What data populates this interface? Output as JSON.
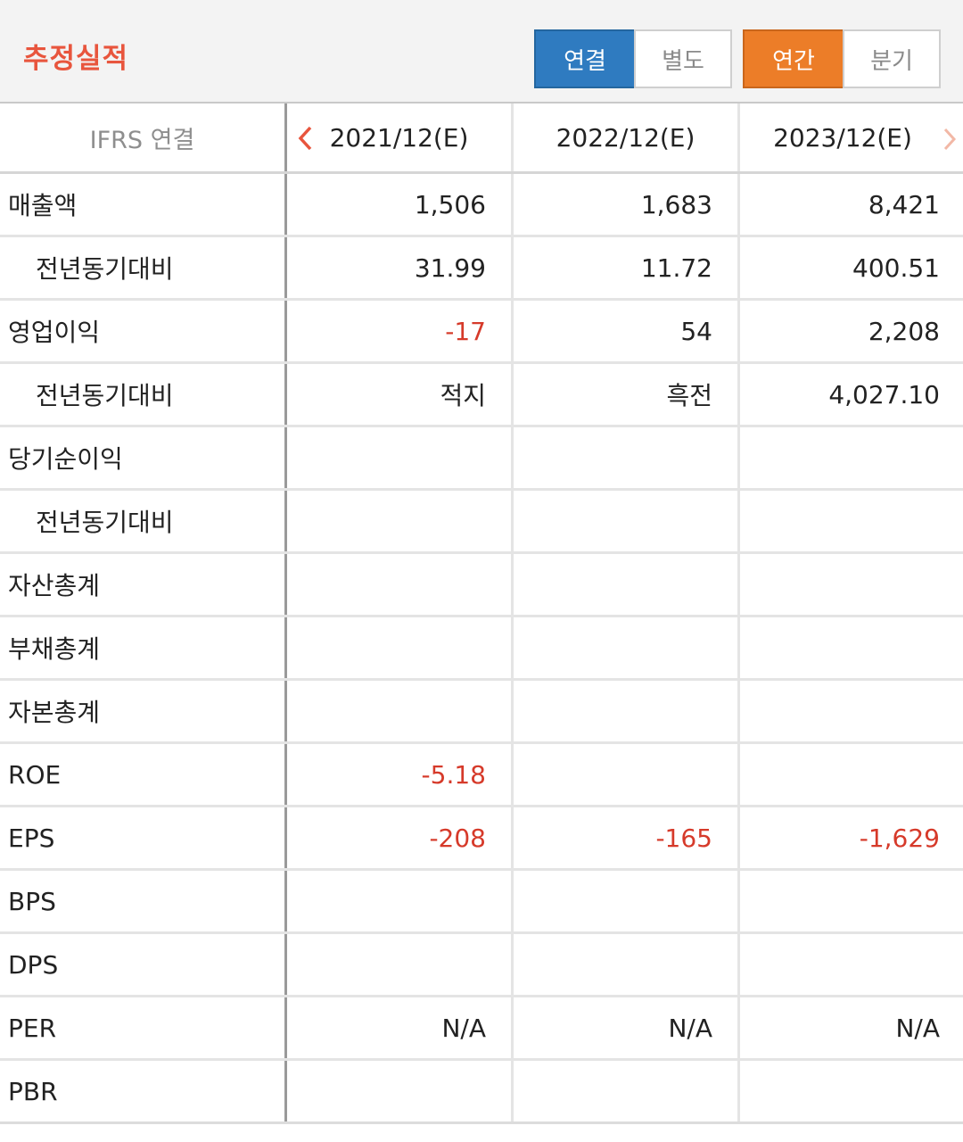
{
  "header": {
    "title": "추정실적",
    "scope_toggle": {
      "selected": "연결",
      "options": [
        "연결",
        "별도"
      ]
    },
    "period_toggle": {
      "selected": "연간",
      "options": [
        "연간",
        "분기"
      ]
    }
  },
  "table": {
    "corner_label": "IFRS 연결",
    "columns": [
      "2021/12(E)",
      "2022/12(E)",
      "2023/12(E)"
    ],
    "rows": [
      {
        "label": "매출액",
        "sub": false,
        "values": [
          "1,506",
          "1,683",
          "8,421"
        ]
      },
      {
        "label": "전년동기대비",
        "sub": true,
        "values": [
          "31.99",
          "11.72",
          "400.51"
        ]
      },
      {
        "label": "영업이익",
        "sub": false,
        "values": [
          "-17",
          "54",
          "2,208"
        ]
      },
      {
        "label": "전년동기대비",
        "sub": true,
        "values": [
          "적지",
          "흑전",
          "4,027.10"
        ]
      },
      {
        "label": "당기순이익",
        "sub": false,
        "values": [
          "",
          "",
          ""
        ]
      },
      {
        "label": "전년동기대비",
        "sub": true,
        "values": [
          "",
          "",
          ""
        ]
      },
      {
        "label": "자산총계",
        "sub": false,
        "values": [
          "",
          "",
          ""
        ]
      },
      {
        "label": "부채총계",
        "sub": false,
        "values": [
          "",
          "",
          ""
        ]
      },
      {
        "label": "자본총계",
        "sub": false,
        "values": [
          "",
          "",
          ""
        ]
      },
      {
        "label": "ROE",
        "sub": false,
        "values": [
          "-5.18",
          "",
          ""
        ]
      },
      {
        "label": "EPS",
        "sub": false,
        "values": [
          "-208",
          "-165",
          "-1,629"
        ]
      },
      {
        "label": "BPS",
        "sub": false,
        "values": [
          "",
          "",
          ""
        ]
      },
      {
        "label": "DPS",
        "sub": false,
        "values": [
          "",
          "",
          ""
        ]
      },
      {
        "label": "PER",
        "sub": false,
        "values": [
          "N/A",
          "N/A",
          "N/A"
        ]
      },
      {
        "label": "PBR",
        "sub": false,
        "values": [
          "",
          "",
          ""
        ]
      }
    ]
  },
  "colors": {
    "title": "#e8553d",
    "active_scope": "#2f7bc0",
    "active_period": "#ec7d28",
    "negative": "#d63a2a",
    "prev_arrow": "#e8553d",
    "next_arrow": "#f2b8a6"
  },
  "icons": {
    "prev": "chevron-left-icon",
    "next": "chevron-right-icon"
  }
}
